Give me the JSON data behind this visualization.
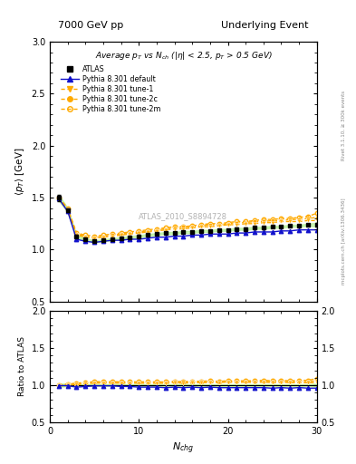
{
  "title_left": "7000 GeV pp",
  "title_right": "Underlying Event",
  "plot_title": "Average $p_T$ vs $N_{ch}$ ($|\\eta|$ < 2.5, $p_T$ > 0.5 GeV)",
  "ylabel_main": "$\\langle p_T \\rangle$ [GeV]",
  "ylabel_ratio": "Ratio to ATLAS",
  "xlabel": "$N_{chg}$",
  "ylim_main": [
    0.5,
    3.0
  ],
  "ylim_ratio": [
    0.5,
    2.0
  ],
  "xlim": [
    0,
    30
  ],
  "watermark": "ATLAS_2010_S8894728",
  "side_text1": "Rivet 3.1.10, ≥ 300k events",
  "side_text2": "mcplots.cern.ch [arXiv:1306.3436]",
  "nch": [
    1,
    2,
    3,
    4,
    5,
    6,
    7,
    8,
    9,
    10,
    11,
    12,
    13,
    14,
    15,
    16,
    17,
    18,
    19,
    20,
    21,
    22,
    23,
    24,
    25,
    26,
    27,
    28,
    29,
    30
  ],
  "atlas_data": [
    1.5,
    1.38,
    1.13,
    1.1,
    1.08,
    1.09,
    1.1,
    1.11,
    1.12,
    1.13,
    1.14,
    1.15,
    1.16,
    1.16,
    1.17,
    1.17,
    1.18,
    1.18,
    1.19,
    1.19,
    1.2,
    1.2,
    1.21,
    1.21,
    1.22,
    1.22,
    1.23,
    1.23,
    1.24,
    1.24
  ],
  "atlas_err": [
    0.03,
    0.02,
    0.01,
    0.01,
    0.01,
    0.01,
    0.01,
    0.01,
    0.01,
    0.01,
    0.01,
    0.01,
    0.01,
    0.01,
    0.01,
    0.01,
    0.01,
    0.01,
    0.01,
    0.01,
    0.01,
    0.01,
    0.01,
    0.01,
    0.01,
    0.01,
    0.01,
    0.01,
    0.01,
    0.02
  ],
  "pythia_default": [
    1.49,
    1.37,
    1.1,
    1.08,
    1.07,
    1.08,
    1.09,
    1.09,
    1.1,
    1.1,
    1.11,
    1.12,
    1.12,
    1.13,
    1.13,
    1.14,
    1.14,
    1.15,
    1.15,
    1.15,
    1.16,
    1.16,
    1.17,
    1.17,
    1.17,
    1.18,
    1.18,
    1.19,
    1.19,
    1.19
  ],
  "pythia_tune1": [
    1.49,
    1.38,
    1.14,
    1.12,
    1.11,
    1.12,
    1.13,
    1.14,
    1.15,
    1.16,
    1.17,
    1.18,
    1.19,
    1.2,
    1.2,
    1.21,
    1.22,
    1.22,
    1.23,
    1.24,
    1.24,
    1.25,
    1.25,
    1.26,
    1.26,
    1.27,
    1.27,
    1.27,
    1.28,
    1.28
  ],
  "pythia_tune2c": [
    1.5,
    1.39,
    1.15,
    1.13,
    1.12,
    1.13,
    1.14,
    1.15,
    1.16,
    1.17,
    1.18,
    1.19,
    1.2,
    1.21,
    1.22,
    1.22,
    1.23,
    1.24,
    1.24,
    1.25,
    1.26,
    1.26,
    1.27,
    1.27,
    1.28,
    1.28,
    1.29,
    1.29,
    1.3,
    1.31
  ],
  "pythia_tune2m": [
    1.5,
    1.4,
    1.16,
    1.14,
    1.13,
    1.14,
    1.15,
    1.16,
    1.17,
    1.18,
    1.19,
    1.2,
    1.21,
    1.22,
    1.22,
    1.23,
    1.24,
    1.25,
    1.25,
    1.26,
    1.27,
    1.27,
    1.28,
    1.29,
    1.29,
    1.3,
    1.3,
    1.31,
    1.32,
    1.35
  ],
  "color_atlas": "#000000",
  "color_default": "#1111cc",
  "color_tune1": "#ffaa00",
  "color_tune2c": "#ffaa00",
  "color_tune2m": "#ffaa00",
  "band_color": "#aaee88",
  "band_color2": "#ddee44"
}
